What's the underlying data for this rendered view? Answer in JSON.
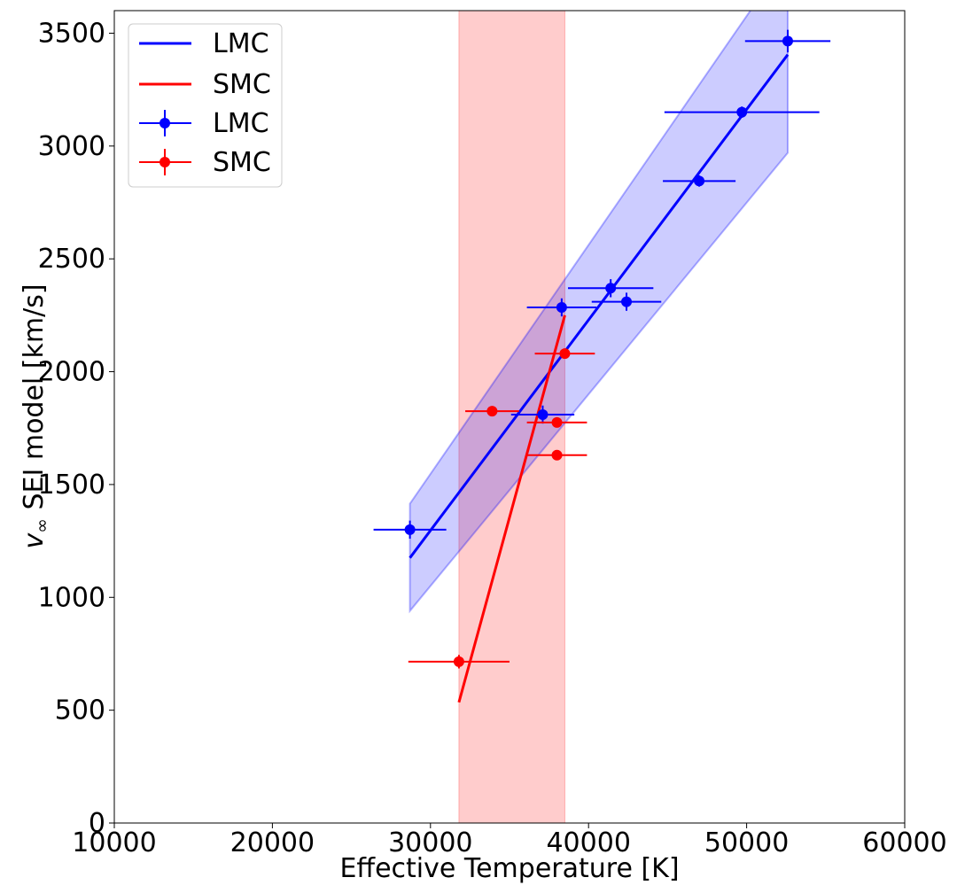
{
  "chart_data": {
    "type": "scatter",
    "xlabel": "Effective Temperature [K]",
    "ylabel_prefix": "v",
    "ylabel_sub": "∞",
    "ylabel_rest": " SEI model [km/s]",
    "xlim": [
      10000,
      60000
    ],
    "ylim": [
      0,
      3600
    ],
    "xticks": [
      10000,
      20000,
      30000,
      40000,
      50000,
      60000
    ],
    "yticks": [
      0,
      500,
      1000,
      1500,
      2000,
      2500,
      3000,
      3500
    ],
    "grid": false,
    "legend_position": "top-left",
    "legend": [
      {
        "label": "LMC",
        "kind": "line",
        "color": "#0000ff"
      },
      {
        "label": "SMC",
        "kind": "line",
        "color": "#ff0000"
      },
      {
        "label": "LMC",
        "kind": "errorbar",
        "color": "#0000ff"
      },
      {
        "label": "SMC",
        "kind": "errorbar",
        "color": "#ff0000"
      }
    ],
    "shaded_vertical_band": {
      "x": [
        31800,
        38500
      ],
      "color": "#ff0000",
      "opacity": 0.2
    },
    "fit_lines": [
      {
        "name": "LMC",
        "color": "#0000ff",
        "x": [
          28700,
          52600
        ],
        "y": [
          1175,
          3405
        ],
        "band_lower": [
          940,
          2970
        ],
        "band_upper": [
          1415,
          3840
        ]
      },
      {
        "name": "SMC",
        "color": "#ff0000",
        "x": [
          31800,
          38500
        ],
        "y": [
          535,
          2250
        ]
      }
    ],
    "series": [
      {
        "name": "LMC",
        "color": "#0000ff",
        "points": [
          {
            "x": 28700,
            "y": 1300,
            "xerr": 2300,
            "yerr": 40
          },
          {
            "x": 37100,
            "y": 1810,
            "xerr": 2000,
            "yerr": 40
          },
          {
            "x": 38300,
            "y": 2285,
            "xerr": 2200,
            "yerr": 40
          },
          {
            "x": 41400,
            "y": 2370,
            "xerr": 2700,
            "yerr": 40
          },
          {
            "x": 42400,
            "y": 2310,
            "xerr": 2200,
            "yerr": 40
          },
          {
            "x": 47000,
            "y": 2845,
            "xerr": 2300,
            "yerr": 25
          },
          {
            "x": 49700,
            "y": 3150,
            "xerr": 4900,
            "yerr": 25
          },
          {
            "x": 52600,
            "y": 3465,
            "xerr": 2700,
            "yerr": 50
          }
        ]
      },
      {
        "name": "SMC",
        "color": "#ff0000",
        "points": [
          {
            "x": 31800,
            "y": 715,
            "xerr": 3200,
            "yerr": 30
          },
          {
            "x": 33900,
            "y": 1825,
            "xerr": 1700,
            "yerr": 15
          },
          {
            "x": 38000,
            "y": 1775,
            "xerr": 1900,
            "yerr": 15
          },
          {
            "x": 38000,
            "y": 1630,
            "xerr": 1900,
            "yerr": 15
          },
          {
            "x": 38500,
            "y": 2080,
            "xerr": 1900,
            "yerr": 15
          }
        ]
      }
    ]
  }
}
